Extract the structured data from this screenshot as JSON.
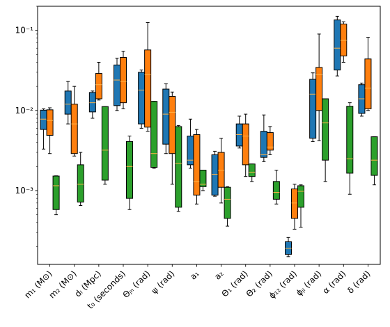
{
  "chart_data": {
    "type": "box",
    "yscale": "log",
    "ylim": [
      0.00012,
      0.2
    ],
    "yticks": [
      {
        "value": 0.001,
        "label": "10⁻³"
      },
      {
        "value": 0.01,
        "label": "10⁻²"
      },
      {
        "value": 0.1,
        "label": "10⁻¹"
      }
    ],
    "categories": [
      "m₁ (M⊙)",
      "m₂ (M⊙)",
      "dₗ (Mpc)",
      "t₀ (seconds)",
      "Θⱼₙ (rad)",
      "ψ (rad)",
      "a₁",
      "a₂",
      "Θ₁ (rad)",
      "Θ₂ (rad)",
      "ϕ₁₂ (rad)",
      "ϕⱼₗ (rad)",
      "α (rad)",
      "δ (rad)"
    ],
    "series": [
      {
        "color": "#1f77b4",
        "boxes": [
          {
            "min": 0.0033,
            "q1": 0.0058,
            "median": 0.0078,
            "q3": 0.0101,
            "max": 0.0105
          },
          {
            "min": 0.0068,
            "q1": 0.009,
            "median": 0.012,
            "q3": 0.0175,
            "max": 0.023
          },
          {
            "min": 0.008,
            "q1": 0.0096,
            "median": 0.0125,
            "q3": 0.0168,
            "max": 0.0175
          },
          {
            "min": 0.01,
            "q1": 0.0115,
            "median": 0.024,
            "q3": 0.037,
            "max": 0.045
          },
          {
            "min": 0.006,
            "q1": 0.0068,
            "median": 0.018,
            "q3": 0.03,
            "max": 0.032
          },
          {
            "min": 0.0029,
            "q1": 0.0038,
            "median": 0.009,
            "q3": 0.0185,
            "max": 0.0215
          },
          {
            "min": 0.0019,
            "q1": 0.0021,
            "median": 0.0024,
            "q3": 0.0048,
            "max": 0.0078
          },
          {
            "min": 0.00085,
            "q1": 0.00088,
            "median": 0.0016,
            "q3": 0.0028,
            "max": 0.0031
          },
          {
            "min": 0.0034,
            "q1": 0.0036,
            "median": 0.005,
            "q3": 0.0068,
            "max": 0.0085
          },
          {
            "min": 0.0023,
            "q1": 0.0026,
            "median": 0.0028,
            "q3": 0.0055,
            "max": 0.0088
          },
          {
            "min": 0.00015,
            "q1": 0.00016,
            "median": 0.00019,
            "q3": 0.00023,
            "max": 0.00026
          },
          {
            "min": 0.0041,
            "q1": 0.0045,
            "median": 0.016,
            "q3": 0.0245,
            "max": 0.0295
          },
          {
            "min": 0.027,
            "q1": 0.032,
            "median": 0.06,
            "q3": 0.135,
            "max": 0.15
          },
          {
            "min": 0.0085,
            "q1": 0.0092,
            "median": 0.014,
            "q3": 0.021,
            "max": 0.022
          }
        ]
      },
      {
        "color": "#ff7f0e",
        "boxes": [
          {
            "min": 0.0029,
            "q1": 0.0049,
            "median": 0.0075,
            "q3": 0.0102,
            "max": 0.0108
          },
          {
            "min": 0.0027,
            "q1": 0.0029,
            "median": 0.0068,
            "q3": 0.012,
            "max": 0.02
          },
          {
            "min": 0.0135,
            "q1": 0.014,
            "median": 0.021,
            "q3": 0.029,
            "max": 0.04
          },
          {
            "min": 0.0105,
            "q1": 0.0125,
            "median": 0.023,
            "q3": 0.046,
            "max": 0.055
          },
          {
            "min": 0.0055,
            "q1": 0.0062,
            "median": 0.028,
            "q3": 0.057,
            "max": 0.125
          },
          {
            "min": 0.0012,
            "q1": 0.0029,
            "median": 0.0095,
            "q3": 0.015,
            "max": 0.017
          },
          {
            "min": 0.00068,
            "q1": 0.00088,
            "median": 0.0013,
            "q3": 0.005,
            "max": 0.0058
          },
          {
            "min": 0.0007,
            "q1": 0.0011,
            "median": 0.0018,
            "q3": 0.003,
            "max": 0.0045
          },
          {
            "min": 0.0015,
            "q1": 0.0021,
            "median": 0.0048,
            "q3": 0.0068,
            "max": 0.009
          },
          {
            "min": 0.0028,
            "q1": 0.0032,
            "median": 0.0035,
            "q3": 0.0053,
            "max": 0.0063
          },
          {
            "min": 0.00033,
            "q1": 0.00045,
            "median": 0.0007,
            "q3": 0.00105,
            "max": 0.0012
          },
          {
            "min": 0.0042,
            "q1": 0.01,
            "median": 0.028,
            "q3": 0.0345,
            "max": 0.09
          },
          {
            "min": 0.04,
            "q1": 0.048,
            "median": 0.075,
            "q3": 0.12,
            "max": 0.128
          },
          {
            "min": 0.01,
            "q1": 0.0105,
            "median": 0.019,
            "q3": 0.044,
            "max": 0.082
          }
        ]
      },
      {
        "color": "#2ca02c",
        "boxes": [
          {
            "min": 0.0005,
            "q1": 0.00058,
            "median": 0.00115,
            "q3": 0.00152,
            "max": 0.00153
          },
          {
            "min": 0.00065,
            "q1": 0.00072,
            "median": 0.0012,
            "q3": 0.0021,
            "max": 0.003
          },
          {
            "min": 0.0012,
            "q1": 0.00135,
            "median": 0.0032,
            "q3": 0.0112,
            "max": 0.0112
          },
          {
            "min": 0.00058,
            "q1": 0.0008,
            "median": 0.002,
            "q3": 0.0041,
            "max": 0.0048
          },
          {
            "min": 0.0019,
            "q1": 0.00195,
            "median": 0.0029,
            "q3": 0.013,
            "max": 0.013
          },
          {
            "min": 0.00055,
            "q1": 0.00062,
            "median": 0.0022,
            "q3": 0.0063,
            "max": 0.0065
          },
          {
            "min": 0.001,
            "q1": 0.00112,
            "median": 0.0012,
            "q3": 0.0018,
            "max": 0.0018
          },
          {
            "min": 0.00036,
            "q1": 0.00045,
            "median": 0.00078,
            "q3": 0.0011,
            "max": 0.00112
          },
          {
            "min": 0.0013,
            "q1": 0.0015,
            "median": 0.0017,
            "q3": 0.00215,
            "max": 0.00215
          },
          {
            "min": 0.00068,
            "q1": 0.00078,
            "median": 0.00095,
            "q3": 0.0013,
            "max": 0.0018
          },
          {
            "min": 0.00035,
            "q1": 0.00062,
            "median": 0.00098,
            "q3": 0.00115,
            "max": 0.00118
          },
          {
            "min": 0.0013,
            "q1": 0.0024,
            "median": 0.007,
            "q3": 0.014,
            "max": 0.014
          },
          {
            "min": 0.0009,
            "q1": 0.00165,
            "median": 0.0025,
            "q3": 0.0113,
            "max": 0.0125
          },
          {
            "min": 0.00118,
            "q1": 0.00155,
            "median": 0.0024,
            "q3": 0.0047,
            "max": 0.0047
          }
        ]
      }
    ],
    "median_color": "#ffb347",
    "grid": false,
    "legend": "none"
  }
}
